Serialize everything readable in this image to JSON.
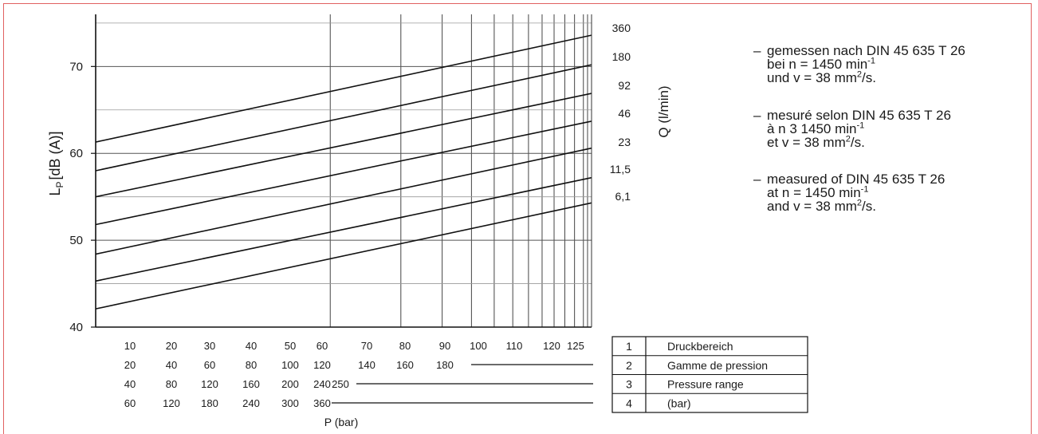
{
  "chart_data": {
    "type": "line",
    "ylabel": "L",
    "ylabel_sub": "P",
    "ylabel_rest": "[dB (A)]",
    "ylim": [
      40,
      76
    ],
    "yticks": [
      40,
      50,
      60,
      70
    ],
    "xlim": [
      1,
      130
    ],
    "xlabel": "P (bar)",
    "x_scale": "log",
    "grid": true,
    "right_axis_label": "Q (l/min)",
    "series": [
      {
        "name": "360",
        "x": [
          1,
          130
        ],
        "y": [
          61.3,
          73.6
        ]
      },
      {
        "name": "180",
        "x": [
          1,
          130
        ],
        "y": [
          58.0,
          70.2
        ]
      },
      {
        "name": "92",
        "x": [
          1,
          130
        ],
        "y": [
          55.0,
          66.9
        ]
      },
      {
        "name": "46",
        "x": [
          1,
          130
        ],
        "y": [
          51.8,
          63.7
        ]
      },
      {
        "name": "23",
        "x": [
          1,
          130
        ],
        "y": [
          48.4,
          60.6
        ]
      },
      {
        "name": "11,5",
        "x": [
          1,
          130
        ],
        "y": [
          45.3,
          57.2
        ]
      },
      {
        "name": "6,1",
        "x": [
          1,
          130
        ],
        "y": [
          42.1,
          54.3
        ]
      }
    ],
    "pressure_rows": [
      {
        "labels": [
          "10",
          "20",
          "30",
          "40",
          "50",
          "60",
          "70",
          "80",
          "90",
          "100",
          "110",
          "120",
          "125"
        ]
      },
      {
        "labels": [
          "20",
          "40",
          "60",
          "80",
          "100",
          "120",
          "140",
          "160",
          "180"
        ]
      },
      {
        "labels": [
          "40",
          "80",
          "120",
          "160",
          "200",
          "240",
          "250"
        ]
      },
      {
        "labels": [
          "60",
          "120",
          "180",
          "240",
          "300",
          "360"
        ]
      }
    ],
    "legend_table": [
      {
        "num": "1",
        "text": "Druckbereich"
      },
      {
        "num": "2",
        "text": "Gamme de pression"
      },
      {
        "num": "3",
        "text": "Pressure range"
      },
      {
        "num": "4",
        "text": "(bar)"
      }
    ]
  },
  "notes": {
    "de": {
      "line1": "gemessen nach DIN 45 635 T 26",
      "line2_pre": "bei n = 1450 min",
      "line2_sup": "-1",
      "line3_pre": "und v = 38 mm",
      "line3_sup": "2",
      "line3_post": "/s."
    },
    "fr": {
      "line1": "mesuré selon DIN 45 635 T 26",
      "line2_pre": "à n 3 1450 min",
      "line2_sup": "-1",
      "line3_pre": "et v = 38 mm",
      "line3_sup": "2",
      "line3_post": "/s."
    },
    "en": {
      "line1": "measured of DIN 45 635 T 26",
      "line2_pre": "at n = 1450 min",
      "line2_sup": "-1",
      "line3_pre": "and v = 38 mm",
      "line3_sup": "2",
      "line3_post": "/s."
    },
    "dash": "–"
  }
}
